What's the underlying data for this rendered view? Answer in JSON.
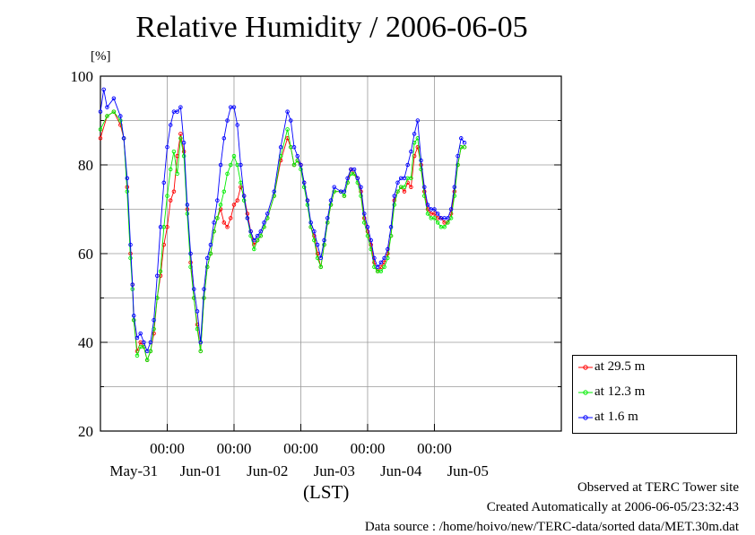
{
  "chart_data": {
    "type": "line",
    "title": "Relative Humidity / 2006-06-05",
    "ylabel": "[%]",
    "xlabel": "(LST)",
    "ylim": [
      20,
      100
    ],
    "yticks": [
      20,
      40,
      60,
      80,
      100
    ],
    "xlim": [
      0,
      6.9
    ],
    "time_ticks": [
      "00:00",
      "00:00",
      "00:00",
      "00:00",
      "00:00"
    ],
    "time_tick_pos": [
      1,
      2,
      3,
      4,
      5
    ],
    "date_labels": [
      "May-31",
      "Jun-01",
      "Jun-02",
      "Jun-03",
      "Jun-04",
      "Jun-05"
    ],
    "date_label_pos": [
      0.5,
      1.5,
      2.5,
      3.5,
      4.5,
      5.5
    ],
    "grid": true,
    "legend_position": "outside-right",
    "series": [
      {
        "name": "at 29.5 m",
        "color": "#ff0000",
        "points": [
          [
            0,
            86
          ],
          [
            0.1,
            91
          ],
          [
            0.2,
            92
          ],
          [
            0.3,
            89
          ],
          [
            0.35,
            86
          ],
          [
            0.4,
            75
          ],
          [
            0.45,
            60
          ],
          [
            0.48,
            53
          ],
          [
            0.5,
            45
          ],
          [
            0.55,
            38
          ],
          [
            0.6,
            40
          ],
          [
            0.65,
            39
          ],
          [
            0.7,
            36
          ],
          [
            0.75,
            38
          ],
          [
            0.8,
            42
          ],
          [
            0.85,
            50
          ],
          [
            0.9,
            55
          ],
          [
            0.95,
            62
          ],
          [
            1.0,
            66
          ],
          [
            1.05,
            72
          ],
          [
            1.1,
            74
          ],
          [
            1.15,
            82
          ],
          [
            1.2,
            87
          ],
          [
            1.25,
            83
          ],
          [
            1.3,
            70
          ],
          [
            1.35,
            58
          ],
          [
            1.4,
            50
          ],
          [
            1.45,
            44
          ],
          [
            1.5,
            38
          ],
          [
            1.55,
            50
          ],
          [
            1.6,
            57
          ],
          [
            1.65,
            60
          ],
          [
            1.7,
            65
          ],
          [
            1.75,
            68
          ],
          [
            1.8,
            70
          ],
          [
            1.85,
            67
          ],
          [
            1.9,
            66
          ],
          [
            1.95,
            68
          ],
          [
            2.0,
            71
          ],
          [
            2.05,
            72
          ],
          [
            2.1,
            75
          ],
          [
            2.15,
            73
          ],
          [
            2.2,
            69
          ],
          [
            2.25,
            65
          ],
          [
            2.3,
            62
          ],
          [
            2.35,
            63
          ],
          [
            2.4,
            64
          ],
          [
            2.45,
            66
          ],
          [
            2.5,
            68
          ],
          [
            2.6,
            73
          ],
          [
            2.7,
            81
          ],
          [
            2.8,
            86
          ],
          [
            2.85,
            84
          ],
          [
            2.9,
            80
          ],
          [
            2.95,
            81
          ],
          [
            3.0,
            80
          ],
          [
            3.05,
            76
          ],
          [
            3.1,
            72
          ],
          [
            3.15,
            66
          ],
          [
            3.2,
            64
          ],
          [
            3.25,
            60
          ],
          [
            3.3,
            57
          ],
          [
            3.35,
            62
          ],
          [
            3.4,
            67
          ],
          [
            3.45,
            71
          ],
          [
            3.5,
            74
          ],
          [
            3.6,
            74
          ],
          [
            3.65,
            73
          ],
          [
            3.7,
            76
          ],
          [
            3.75,
            79
          ],
          [
            3.8,
            78
          ],
          [
            3.85,
            77
          ],
          [
            3.9,
            74
          ],
          [
            3.95,
            68
          ],
          [
            4.0,
            65
          ],
          [
            4.05,
            62
          ],
          [
            4.1,
            58
          ],
          [
            4.15,
            56
          ],
          [
            4.2,
            57
          ],
          [
            4.25,
            58
          ],
          [
            4.3,
            60
          ],
          [
            4.35,
            64
          ],
          [
            4.4,
            72
          ],
          [
            4.45,
            74
          ],
          [
            4.5,
            75
          ],
          [
            4.55,
            74
          ],
          [
            4.6,
            76
          ],
          [
            4.65,
            75
          ],
          [
            4.7,
            82
          ],
          [
            4.75,
            84
          ],
          [
            4.8,
            80
          ],
          [
            4.85,
            74
          ],
          [
            4.9,
            70
          ],
          [
            4.95,
            69
          ],
          [
            5.0,
            69
          ],
          [
            5.05,
            68
          ],
          [
            5.1,
            68
          ],
          [
            5.15,
            67
          ],
          [
            5.2,
            67
          ],
          [
            5.25,
            69
          ],
          [
            5.3,
            74
          ],
          [
            5.35,
            80
          ],
          [
            5.4,
            84
          ],
          [
            5.45,
            84
          ]
        ]
      },
      {
        "name": "at 12.3 m",
        "color": "#00ee00",
        "points": [
          [
            0,
            88
          ],
          [
            0.1,
            91
          ],
          [
            0.2,
            92
          ],
          [
            0.3,
            90
          ],
          [
            0.35,
            86
          ],
          [
            0.4,
            74
          ],
          [
            0.45,
            59
          ],
          [
            0.48,
            52
          ],
          [
            0.5,
            45
          ],
          [
            0.55,
            37
          ],
          [
            0.6,
            39
          ],
          [
            0.65,
            39
          ],
          [
            0.7,
            36
          ],
          [
            0.75,
            38
          ],
          [
            0.8,
            43
          ],
          [
            0.85,
            50
          ],
          [
            0.9,
            56
          ],
          [
            0.95,
            66
          ],
          [
            1.0,
            73
          ],
          [
            1.05,
            79
          ],
          [
            1.1,
            83
          ],
          [
            1.15,
            78
          ],
          [
            1.2,
            86
          ],
          [
            1.25,
            82
          ],
          [
            1.3,
            69
          ],
          [
            1.35,
            57
          ],
          [
            1.4,
            50
          ],
          [
            1.45,
            43
          ],
          [
            1.5,
            38
          ],
          [
            1.55,
            50
          ],
          [
            1.6,
            57
          ],
          [
            1.65,
            60
          ],
          [
            1.7,
            65
          ],
          [
            1.75,
            68
          ],
          [
            1.8,
            71
          ],
          [
            1.85,
            74
          ],
          [
            1.9,
            78
          ],
          [
            1.95,
            80
          ],
          [
            2.0,
            82
          ],
          [
            2.05,
            80
          ],
          [
            2.1,
            76
          ],
          [
            2.15,
            72
          ],
          [
            2.2,
            68
          ],
          [
            2.25,
            64
          ],
          [
            2.3,
            61
          ],
          [
            2.35,
            63
          ],
          [
            2.4,
            64
          ],
          [
            2.45,
            66
          ],
          [
            2.5,
            68
          ],
          [
            2.6,
            73
          ],
          [
            2.7,
            82
          ],
          [
            2.8,
            88
          ],
          [
            2.85,
            84
          ],
          [
            2.9,
            80
          ],
          [
            2.95,
            81
          ],
          [
            3.0,
            79
          ],
          [
            3.05,
            75
          ],
          [
            3.1,
            71
          ],
          [
            3.15,
            66
          ],
          [
            3.2,
            63
          ],
          [
            3.25,
            59
          ],
          [
            3.3,
            57
          ],
          [
            3.35,
            62
          ],
          [
            3.4,
            67
          ],
          [
            3.45,
            71
          ],
          [
            3.5,
            74
          ],
          [
            3.6,
            74
          ],
          [
            3.65,
            73
          ],
          [
            3.7,
            76
          ],
          [
            3.75,
            78
          ],
          [
            3.8,
            78
          ],
          [
            3.85,
            76
          ],
          [
            3.9,
            73
          ],
          [
            3.95,
            67
          ],
          [
            4.0,
            64
          ],
          [
            4.05,
            61
          ],
          [
            4.1,
            57
          ],
          [
            4.15,
            56
          ],
          [
            4.2,
            56
          ],
          [
            4.25,
            57
          ],
          [
            4.3,
            59
          ],
          [
            4.35,
            64
          ],
          [
            4.4,
            71
          ],
          [
            4.45,
            74
          ],
          [
            4.5,
            75
          ],
          [
            4.55,
            75
          ],
          [
            4.6,
            77
          ],
          [
            4.65,
            77
          ],
          [
            4.7,
            85
          ],
          [
            4.75,
            86
          ],
          [
            4.8,
            79
          ],
          [
            4.85,
            73
          ],
          [
            4.9,
            69
          ],
          [
            4.95,
            68
          ],
          [
            5.0,
            68
          ],
          [
            5.05,
            67
          ],
          [
            5.1,
            66
          ],
          [
            5.15,
            66
          ],
          [
            5.2,
            67
          ],
          [
            5.25,
            68
          ],
          [
            5.3,
            73
          ],
          [
            5.35,
            80
          ],
          [
            5.4,
            84
          ],
          [
            5.45,
            84
          ]
        ]
      },
      {
        "name": "at 1.6 m",
        "color": "#0000ff",
        "points": [
          [
            0,
            92
          ],
          [
            0.05,
            97
          ],
          [
            0.1,
            93
          ],
          [
            0.2,
            95
          ],
          [
            0.3,
            91
          ],
          [
            0.35,
            86
          ],
          [
            0.4,
            77
          ],
          [
            0.45,
            62
          ],
          [
            0.48,
            53
          ],
          [
            0.5,
            46
          ],
          [
            0.55,
            41
          ],
          [
            0.6,
            42
          ],
          [
            0.65,
            40
          ],
          [
            0.7,
            38
          ],
          [
            0.75,
            40
          ],
          [
            0.8,
            45
          ],
          [
            0.85,
            55
          ],
          [
            0.9,
            66
          ],
          [
            0.95,
            76
          ],
          [
            1.0,
            84
          ],
          [
            1.05,
            89
          ],
          [
            1.1,
            92
          ],
          [
            1.15,
            92
          ],
          [
            1.2,
            93
          ],
          [
            1.25,
            85
          ],
          [
            1.3,
            71
          ],
          [
            1.35,
            60
          ],
          [
            1.4,
            52
          ],
          [
            1.45,
            47
          ],
          [
            1.5,
            40
          ],
          [
            1.55,
            52
          ],
          [
            1.6,
            59
          ],
          [
            1.65,
            62
          ],
          [
            1.7,
            67
          ],
          [
            1.75,
            72
          ],
          [
            1.8,
            80
          ],
          [
            1.85,
            86
          ],
          [
            1.9,
            90
          ],
          [
            1.95,
            93
          ],
          [
            2.0,
            93
          ],
          [
            2.05,
            89
          ],
          [
            2.1,
            80
          ],
          [
            2.15,
            73
          ],
          [
            2.2,
            68
          ],
          [
            2.25,
            65
          ],
          [
            2.3,
            63
          ],
          [
            2.35,
            64
          ],
          [
            2.4,
            65
          ],
          [
            2.45,
            67
          ],
          [
            2.5,
            69
          ],
          [
            2.6,
            74
          ],
          [
            2.7,
            84
          ],
          [
            2.8,
            92
          ],
          [
            2.85,
            90
          ],
          [
            2.9,
            84
          ],
          [
            2.95,
            82
          ],
          [
            3.0,
            80
          ],
          [
            3.05,
            76
          ],
          [
            3.1,
            72
          ],
          [
            3.15,
            67
          ],
          [
            3.2,
            65
          ],
          [
            3.25,
            62
          ],
          [
            3.3,
            59
          ],
          [
            3.35,
            63
          ],
          [
            3.4,
            68
          ],
          [
            3.45,
            72
          ],
          [
            3.5,
            75
          ],
          [
            3.6,
            74
          ],
          [
            3.65,
            74
          ],
          [
            3.7,
            77
          ],
          [
            3.75,
            79
          ],
          [
            3.8,
            79
          ],
          [
            3.85,
            77
          ],
          [
            3.9,
            75
          ],
          [
            3.95,
            69
          ],
          [
            4.0,
            66
          ],
          [
            4.05,
            63
          ],
          [
            4.1,
            59
          ],
          [
            4.15,
            57
          ],
          [
            4.2,
            58
          ],
          [
            4.25,
            59
          ],
          [
            4.3,
            61
          ],
          [
            4.35,
            66
          ],
          [
            4.4,
            73
          ],
          [
            4.45,
            76
          ],
          [
            4.5,
            77
          ],
          [
            4.55,
            77
          ],
          [
            4.6,
            80
          ],
          [
            4.65,
            83
          ],
          [
            4.7,
            87
          ],
          [
            4.75,
            90
          ],
          [
            4.8,
            81
          ],
          [
            4.85,
            75
          ],
          [
            4.9,
            71
          ],
          [
            4.95,
            70
          ],
          [
            5.0,
            70
          ],
          [
            5.05,
            69
          ],
          [
            5.1,
            68
          ],
          [
            5.15,
            68
          ],
          [
            5.2,
            68
          ],
          [
            5.25,
            70
          ],
          [
            5.3,
            75
          ],
          [
            5.35,
            82
          ],
          [
            5.4,
            86
          ],
          [
            5.45,
            85
          ]
        ]
      }
    ]
  },
  "footer": {
    "line1": "Observed at TERC Tower site",
    "line2": "Created Automatically at 2006-06-05/23:32:43",
    "line3": "Data source : /home/hoivo/new/TERC-data/sorted  data/MET.30m.dat"
  }
}
